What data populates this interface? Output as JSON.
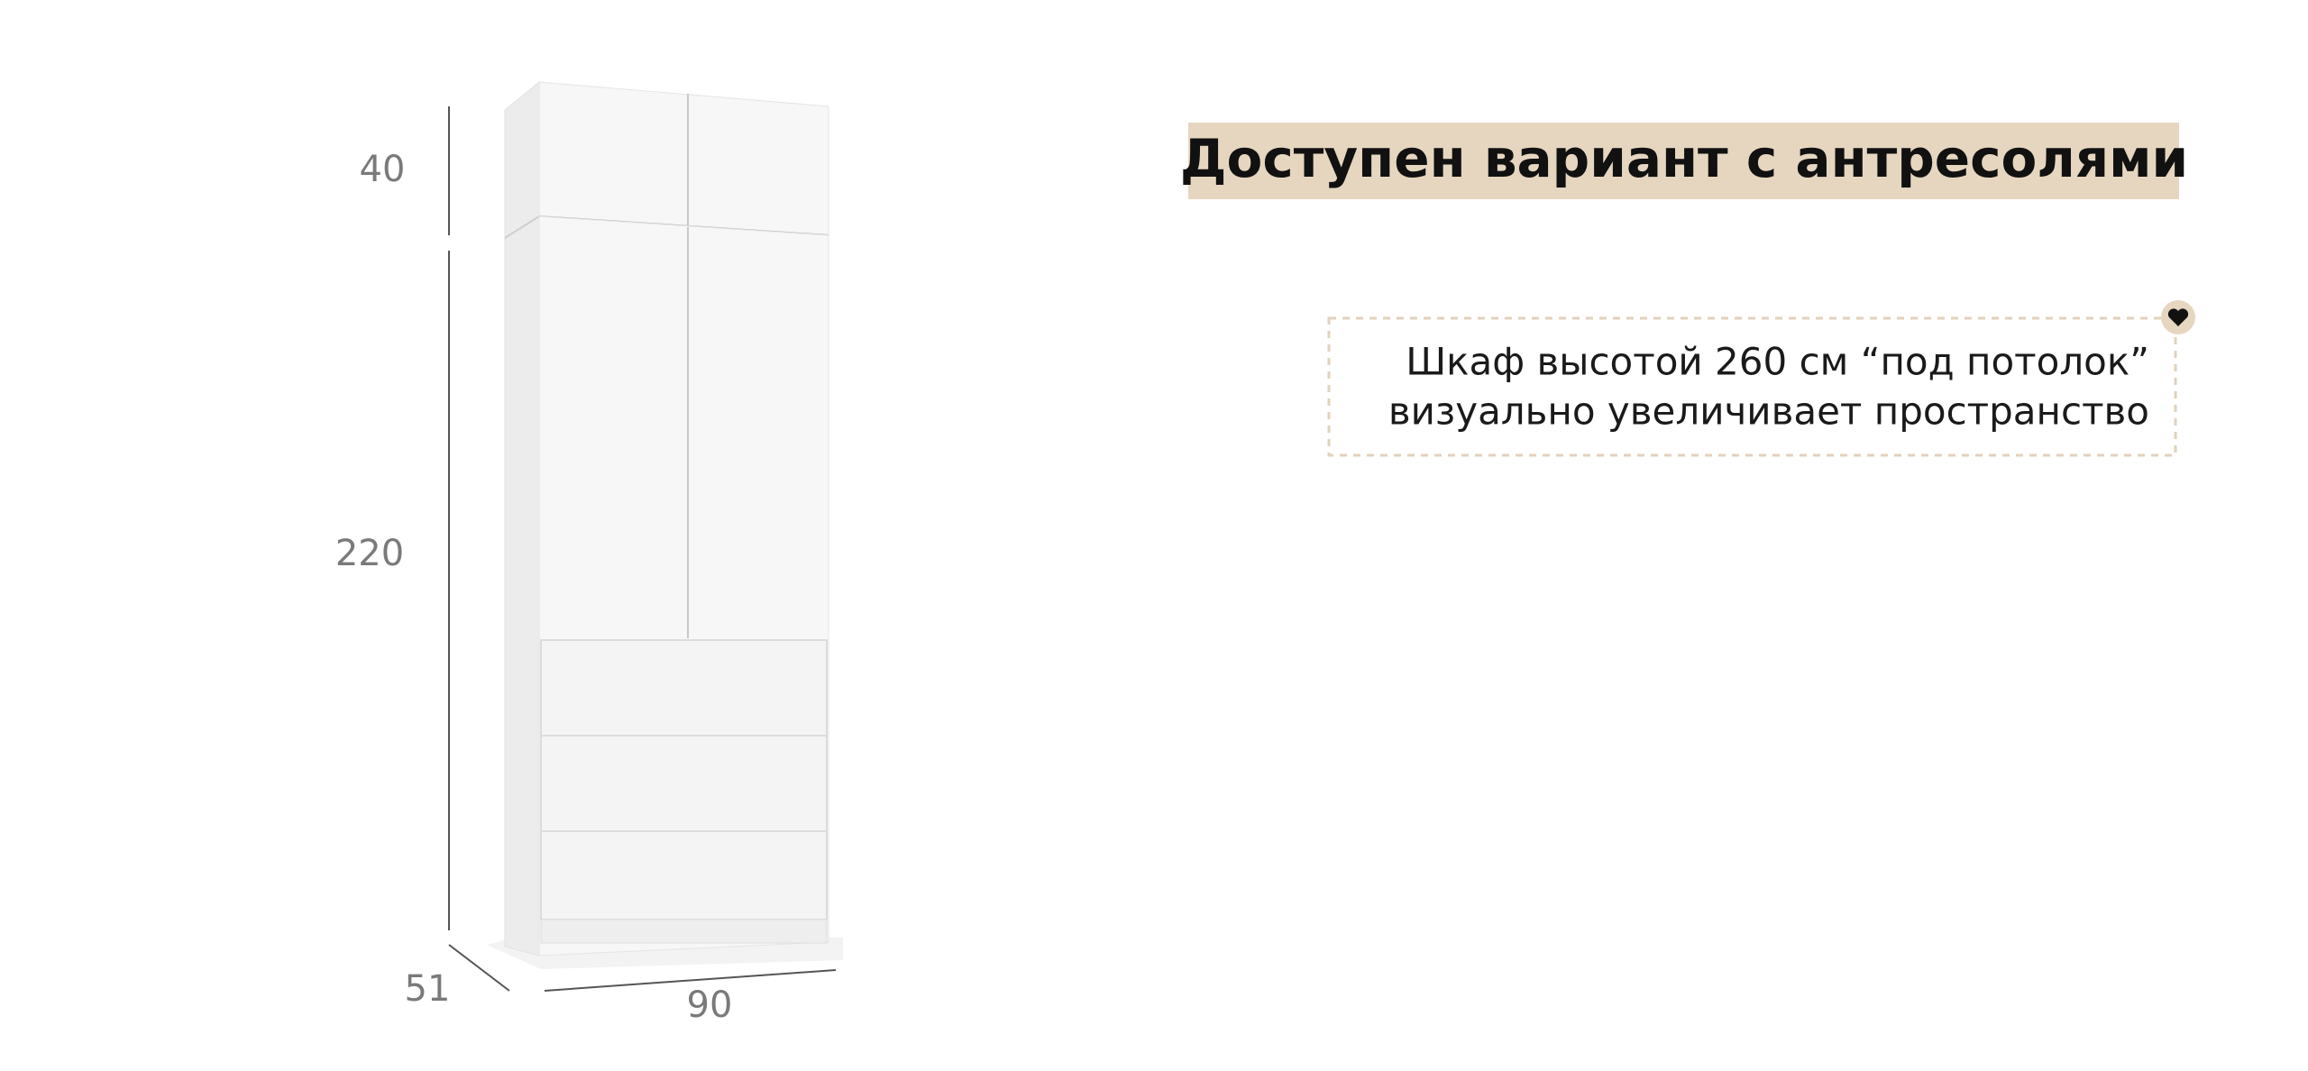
{
  "dimensions": {
    "top_height": "40",
    "body_height": "220",
    "depth": "51",
    "width": "90"
  },
  "banner": {
    "title": "Доступен вариант с антресолями"
  },
  "note": {
    "lines": [
      "Шкаф высотой 260 см “под потолок”",
      "визуально увеличивает пространство"
    ]
  }
}
